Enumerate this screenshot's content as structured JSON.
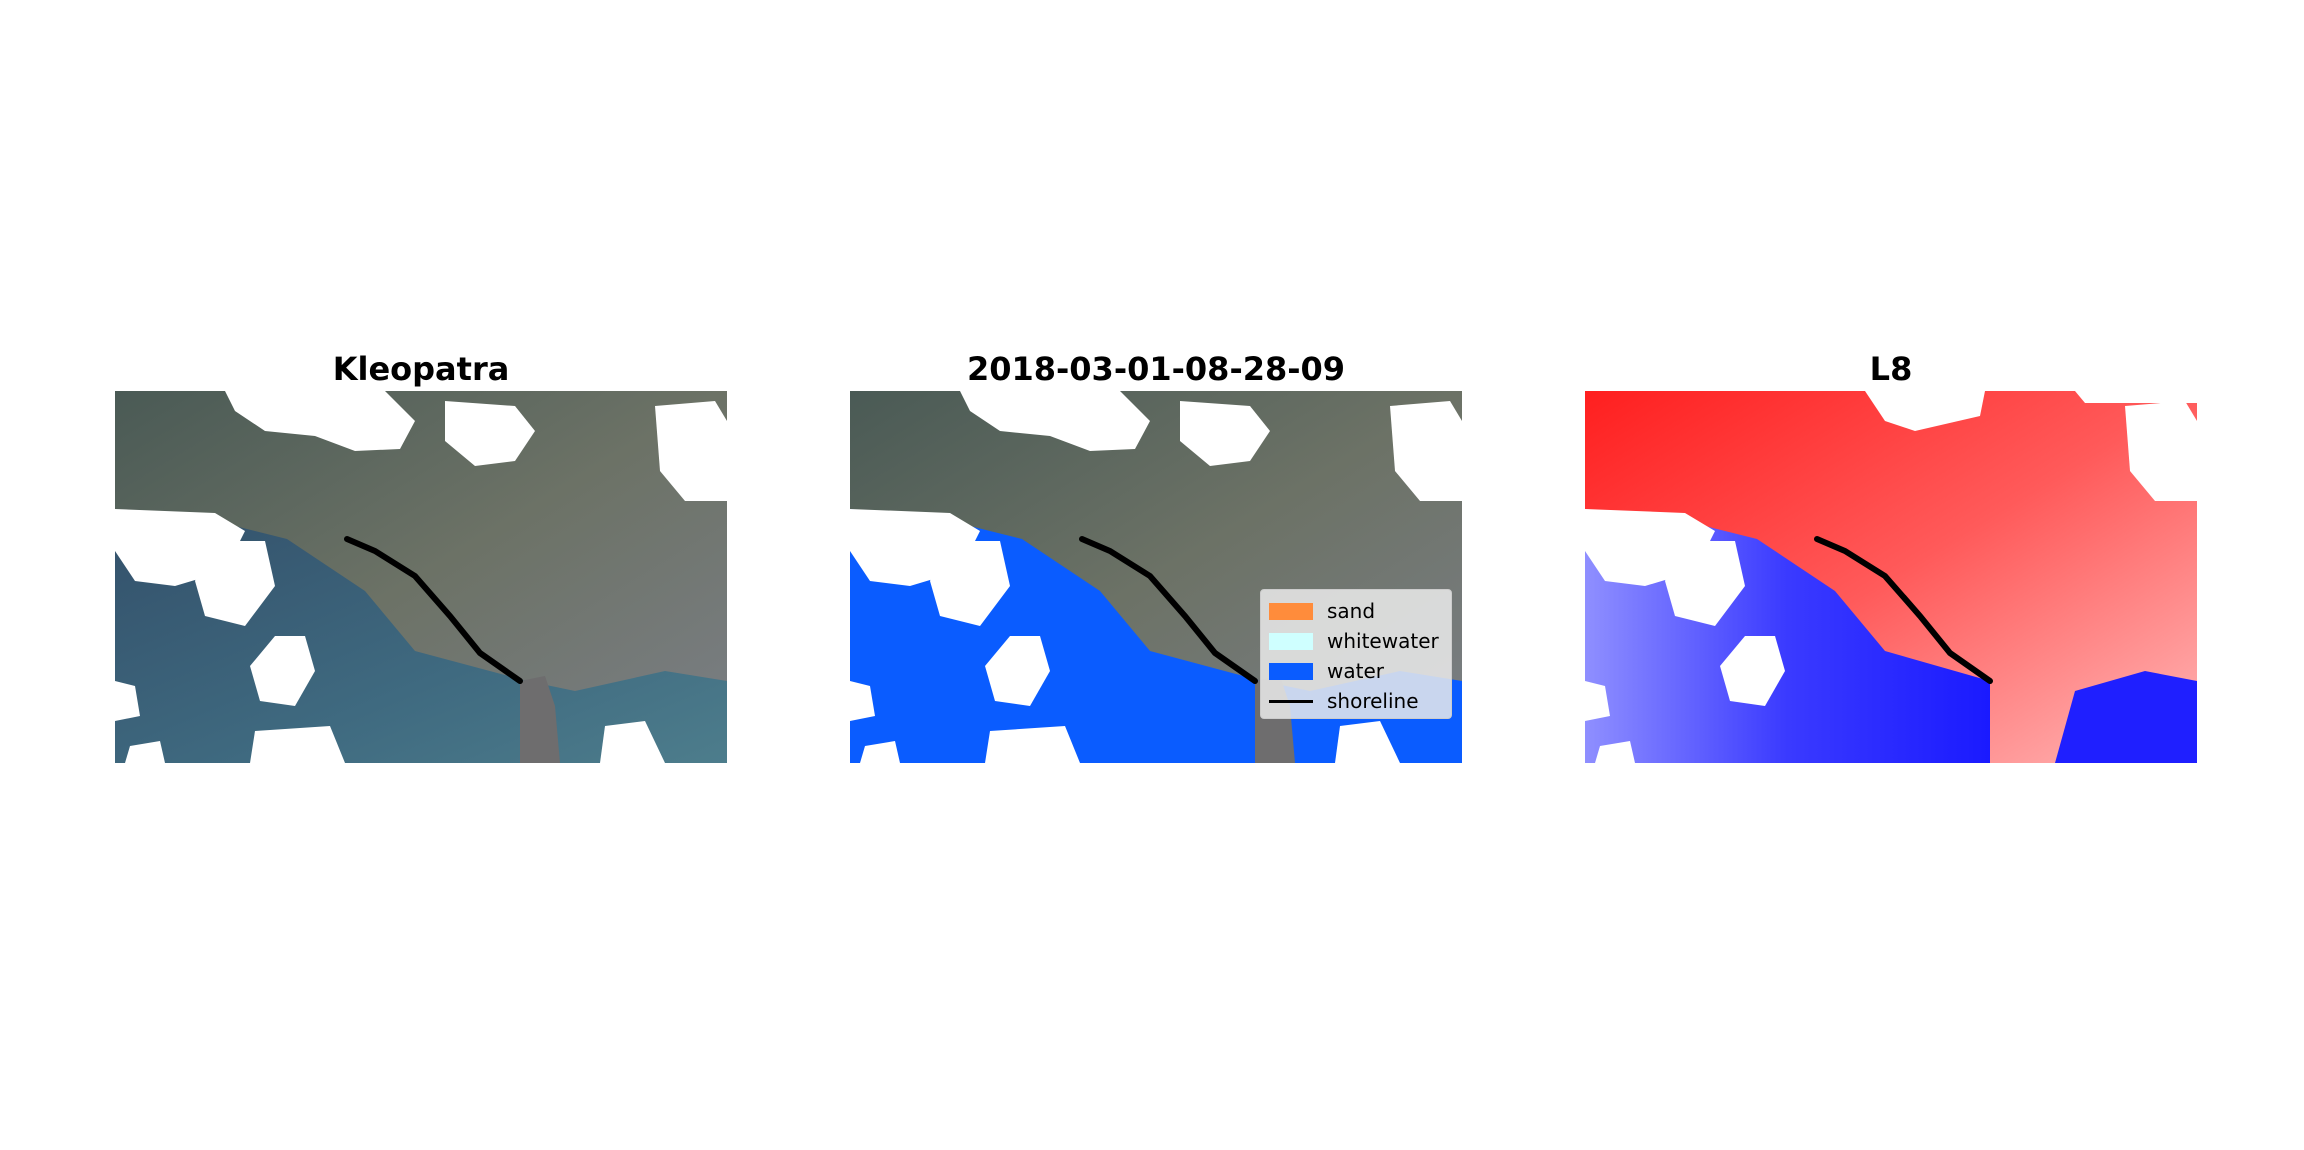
{
  "panels": [
    {
      "title": "Kleopatra",
      "kind": "rgb-imagery"
    },
    {
      "title": "2018-03-01-08-28-09",
      "kind": "classified-imagery"
    },
    {
      "title": "L8",
      "kind": "water-index-imagery"
    }
  ],
  "legend": {
    "items": [
      {
        "label": "sand",
        "color": "#ff8c3b",
        "type": "patch"
      },
      {
        "label": "whitewater",
        "color": "#cfffff",
        "type": "patch"
      },
      {
        "label": "water",
        "color": "#0a5cff",
        "type": "patch"
      },
      {
        "label": "shoreline",
        "color": "#000000",
        "type": "line"
      }
    ]
  },
  "colors": {
    "cloud_mask": "#ffffff",
    "shoreline": "#000000",
    "land_index": "#ff2b2b",
    "water_index": "#1f1fff",
    "sea_rgb": "#3a6077",
    "land_rgb": "#5b6a64"
  }
}
